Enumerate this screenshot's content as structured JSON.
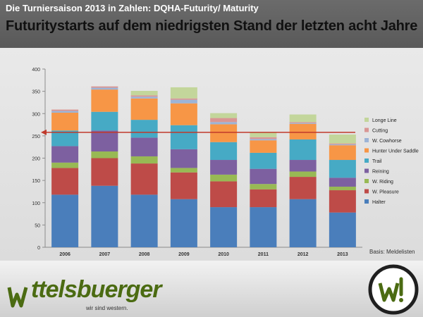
{
  "header": {
    "kicker": "Die Turniersaison 2013 in Zahlen: DQHA-Futurity/ Maturity",
    "headline": "Futuritystarts auf dem niedrigsten Stand der letzten acht Jahre"
  },
  "source_note": "Basis: Meldelisten",
  "brand": {
    "name": "ttelsbuerger",
    "tagline": "wir sind western."
  },
  "colors": {
    "Halter": "#4a7ebb",
    "W. Pleasure": "#be4b48",
    "W. Riding": "#98b954",
    "Reining": "#7d60a0",
    "Trail": "#46aac5",
    "Hunter Under Saddle": "#f79646",
    "W. Cowhorse": "#9cb4d7",
    "Cutting": "#d99694",
    "Longe Line": "#c3d69b",
    "reference_line": "#c0392b",
    "brand_green": "#4b6b12"
  },
  "chart_data": {
    "type": "bar",
    "stacked": true,
    "categories": [
      "2006",
      "2007",
      "2008",
      "2009",
      "2010",
      "2011",
      "2012",
      "2013"
    ],
    "series": [
      {
        "name": "Halter",
        "values": [
          118,
          138,
          118,
          108,
          90,
          90,
          108,
          78
        ]
      },
      {
        "name": "W. Pleasure",
        "values": [
          60,
          62,
          70,
          60,
          58,
          40,
          50,
          50
        ]
      },
      {
        "name": "W. Riding",
        "values": [
          12,
          15,
          16,
          10,
          15,
          12,
          12,
          8
        ]
      },
      {
        "name": "Reining",
        "values": [
          37,
          47,
          42,
          42,
          33,
          34,
          26,
          20
        ]
      },
      {
        "name": "Trail",
        "values": [
          35,
          42,
          40,
          54,
          40,
          36,
          46,
          40
        ]
      },
      {
        "name": "Hunter Under Saddle",
        "values": [
          40,
          50,
          48,
          49,
          40,
          28,
          35,
          33
        ]
      },
      {
        "name": "W. Cowhorse",
        "values": [
          4,
          4,
          4,
          8,
          5,
          3,
          2,
          2
        ]
      },
      {
        "name": "Cutting",
        "values": [
          3,
          3,
          3,
          3,
          9,
          4,
          2,
          2
        ]
      },
      {
        "name": "Longe Line",
        "values": [
          0,
          0,
          10,
          25,
          11,
          10,
          17,
          20
        ]
      }
    ],
    "reference_value": 258,
    "ylim": [
      0,
      400
    ],
    "yticks": [
      0,
      50,
      100,
      150,
      200,
      250,
      300,
      350,
      400
    ],
    "legend_placement": "right",
    "grid": false
  }
}
